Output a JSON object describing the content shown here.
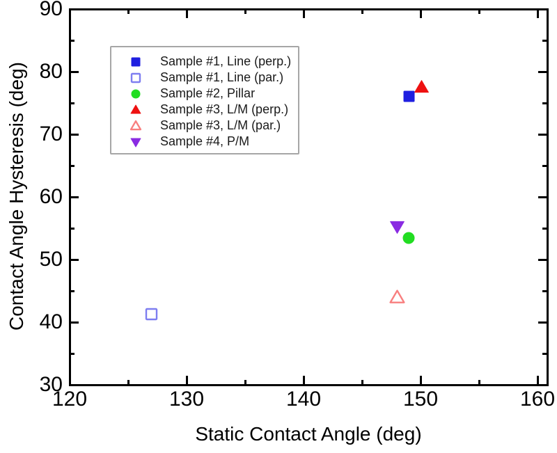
{
  "figure_title": "",
  "axes": {
    "xlabel": "Static Contact Angle (deg)",
    "ylabel": "Contact Angle Hysteresis (deg)"
  },
  "chart_data": {
    "type": "scatter",
    "title": "",
    "xlabel": "Static Contact Angle (deg)",
    "ylabel": "Contact Angle Hysteresis (deg)",
    "xlim": [
      120,
      160
    ],
    "ylim": [
      30,
      90
    ],
    "x_major_ticks": [
      120,
      130,
      140,
      150,
      160
    ],
    "y_major_ticks": [
      30,
      40,
      50,
      60,
      70,
      80,
      90
    ],
    "x_minor_ticks": [
      125,
      135,
      145,
      155
    ],
    "y_minor_ticks": [
      35,
      45,
      55,
      65,
      75,
      85
    ],
    "grid": false,
    "legend_position": "upper-left-inside",
    "series": [
      {
        "name": "Sample #1, Line (perp.)",
        "marker": "square",
        "fill": "filled",
        "color": "#1f1fe0",
        "points": [
          [
            149.0,
            76.1
          ]
        ]
      },
      {
        "name": "Sample #1, Line (par.)",
        "marker": "square",
        "fill": "open",
        "color": "#7e7ef0",
        "points": [
          [
            127.0,
            41.3
          ]
        ]
      },
      {
        "name": "Sample #2, Pillar",
        "marker": "circle",
        "fill": "filled",
        "color": "#22dd22",
        "points": [
          [
            149.0,
            53.5
          ]
        ]
      },
      {
        "name": "Sample #3, L/M (perp.)",
        "marker": "triangle-up",
        "fill": "filled",
        "color": "#ee1111",
        "points": [
          [
            150.1,
            77.5
          ]
        ]
      },
      {
        "name": "Sample #3, L/M (par.)",
        "marker": "triangle-up",
        "fill": "open",
        "color": "#f87f7f",
        "points": [
          [
            148.0,
            44.0
          ]
        ]
      },
      {
        "name": "Sample #4, P/M",
        "marker": "triangle-down",
        "fill": "filled",
        "color": "#8a2be2",
        "points": [
          [
            148.0,
            55.3
          ]
        ]
      }
    ],
    "frame_color": "#000000",
    "background_color": "#ffffff"
  }
}
